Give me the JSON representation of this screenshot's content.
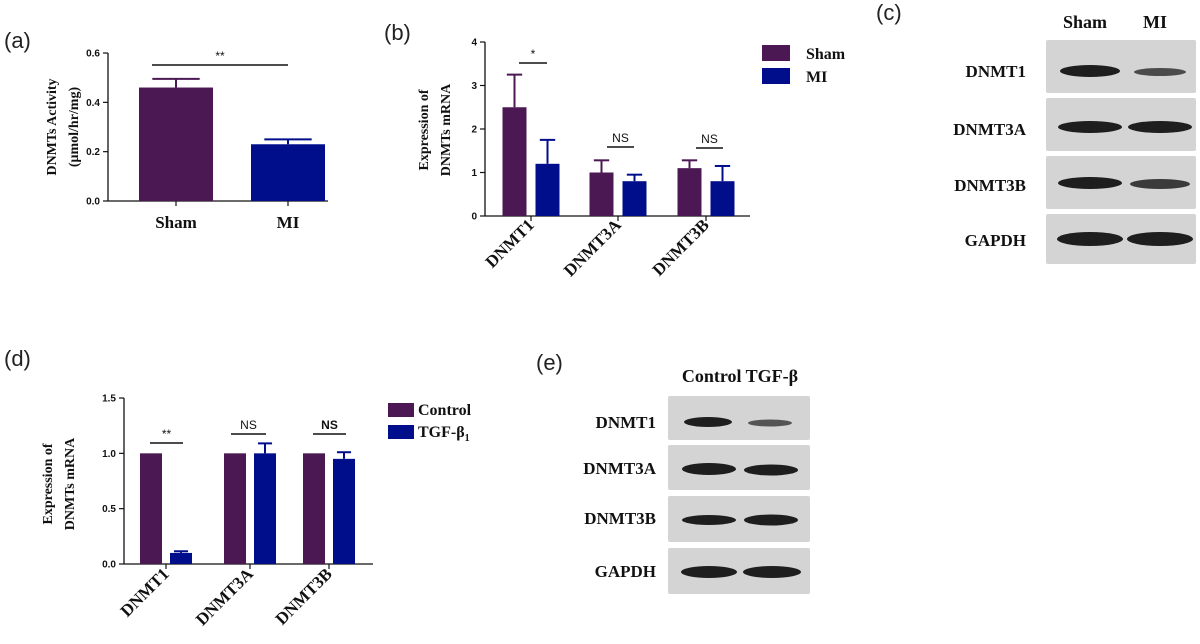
{
  "colors": {
    "series_a": "#4b1853",
    "series_b": "#000e8c",
    "axis": "#111111",
    "blot_bg": "#d4d4d4",
    "band": "#1e1e1e"
  },
  "panels": {
    "a": {
      "label": "(a)"
    },
    "b": {
      "label": "(b)"
    },
    "c": {
      "label": "(c)"
    },
    "d": {
      "label": "(d)"
    },
    "e": {
      "label": "(e)"
    }
  },
  "chart_data": [
    {
      "id": "a",
      "type": "bar",
      "ylabel_line1": "DNMTs Activity",
      "ylabel_line2": "(μmol/hr/mg)",
      "ylim": [
        0,
        0.6
      ],
      "yticks": [
        "0.0",
        "0.2",
        "0.4",
        "0.6"
      ],
      "categories": [
        "Sham",
        "MI"
      ],
      "values": [
        0.46,
        0.23
      ],
      "errors": [
        0.035,
        0.02
      ],
      "significance": [
        {
          "text": "**"
        }
      ]
    },
    {
      "id": "b",
      "type": "bar",
      "ylabel_line1": "Expression of",
      "ylabel_line2": "DNMTs mRNA",
      "ylim": [
        0,
        4
      ],
      "yticks": [
        "0",
        "1",
        "2",
        "3",
        "4"
      ],
      "categories": [
        "DNMT1",
        "DNMT3A",
        "DNMT3B"
      ],
      "series": [
        {
          "name": "Sham",
          "values": [
            2.5,
            1.0,
            1.1
          ],
          "errors": [
            0.75,
            0.28,
            0.18
          ]
        },
        {
          "name": "MI",
          "values": [
            1.2,
            0.8,
            0.8
          ],
          "errors": [
            0.55,
            0.15,
            0.35
          ]
        }
      ],
      "significance": [
        {
          "text": "*"
        },
        {
          "text": "NS"
        },
        {
          "text": "NS"
        }
      ]
    },
    {
      "id": "d",
      "type": "bar",
      "ylabel_line1": "Expression of",
      "ylabel_line2": "DNMTs mRNA",
      "ylim": [
        0,
        1.5
      ],
      "yticks": [
        "0.0",
        "0.5",
        "1.0",
        "1.5"
      ],
      "categories": [
        "DNMT1",
        "DNMT3A",
        "DNMT3B"
      ],
      "series": [
        {
          "name": "Control",
          "values": [
            1.0,
            1.0,
            1.0
          ],
          "errors": [
            0,
            0,
            0
          ]
        },
        {
          "name": "TGF-β",
          "name_subscript": "1",
          "values": [
            0.1,
            1.0,
            0.95
          ],
          "errors": [
            0.015,
            0.09,
            0.06
          ]
        }
      ],
      "significance": [
        {
          "text": "**"
        },
        {
          "text": "NS"
        },
        {
          "text": "NS"
        }
      ]
    }
  ],
  "blots": {
    "c": {
      "columns": [
        "Sham",
        "MI"
      ],
      "rows": [
        "DNMT1",
        "DNMT3A",
        "DNMT3B",
        "GAPDH"
      ]
    },
    "e": {
      "columns_text": "Control TGF-β",
      "rows": [
        "DNMT1",
        "DNMT3A",
        "DNMT3B",
        "GAPDH"
      ]
    }
  }
}
